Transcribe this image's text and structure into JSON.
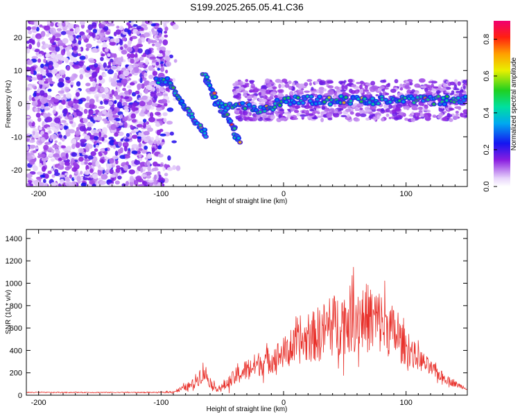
{
  "title": "S199.2025.265.05.41.C36",
  "chart_data": [
    {
      "type": "heatmap",
      "xlabel": "Height of straight line (km)",
      "ylabel": "Frequency (Hz)",
      "xlim": [
        -210,
        150
      ],
      "ylim": [
        -25,
        25
      ],
      "xticks": [
        -200,
        -100,
        0,
        100
      ],
      "yticks": [
        -20,
        -10,
        0,
        10,
        20
      ],
      "colorbar": {
        "label": "Normalized spectral amplitude",
        "range": [
          0.0,
          0.9
        ],
        "ticks": [
          0.0,
          0.2,
          0.4,
          0.6,
          0.8
        ]
      },
      "signal_track": [
        {
          "x": -105,
          "y": 7
        },
        {
          "x": -95,
          "y": 7
        },
        {
          "x": -88,
          "y": 3
        },
        {
          "x": -80,
          "y": -1
        },
        {
          "x": -72,
          "y": -5
        },
        {
          "x": -62,
          "y": -10
        },
        {
          "x": -65,
          "y": 9
        },
        {
          "x": -58,
          "y": 3
        },
        {
          "x": -50,
          "y": -2
        },
        {
          "x": -42,
          "y": -6
        },
        {
          "x": -36,
          "y": -12
        },
        {
          "x": -55,
          "y": 0
        },
        {
          "x": -45,
          "y": -1
        },
        {
          "x": -30,
          "y": -1
        },
        {
          "x": -15,
          "y": -2
        },
        {
          "x": 0,
          "y": 1
        },
        {
          "x": 50,
          "y": 1
        },
        {
          "x": 100,
          "y": 1
        },
        {
          "x": 150,
          "y": 1
        }
      ],
      "noise_region": {
        "x_range": [
          -210,
          -95
        ],
        "y_range": [
          -25,
          25
        ]
      }
    },
    {
      "type": "line",
      "xlabel": "Height of straight line (km)",
      "ylabel": "SNR (10 * v/v)",
      "xlim": [
        -210,
        150
      ],
      "ylim": [
        0,
        1480
      ],
      "xticks": [
        -200,
        -100,
        0,
        100
      ],
      "yticks": [
        0,
        200,
        400,
        600,
        800,
        1000,
        1200,
        1400
      ],
      "color": "#e8302a",
      "envelope": {
        "x": [
          -210,
          -150,
          -100,
          -90,
          -85,
          -75,
          -70,
          -65,
          -60,
          -55,
          -50,
          -45,
          -40,
          -30,
          -20,
          -10,
          0,
          10,
          20,
          30,
          40,
          50,
          60,
          70,
          80,
          90,
          100,
          110,
          120,
          130,
          140,
          150
        ],
        "center": [
          25,
          25,
          25,
          30,
          50,
          90,
          150,
          220,
          110,
          60,
          70,
          110,
          160,
          230,
          280,
          320,
          380,
          440,
          500,
          560,
          620,
          660,
          700,
          690,
          650,
          560,
          420,
          330,
          240,
          160,
          100,
          60
        ],
        "spread": [
          6,
          6,
          6,
          15,
          30,
          60,
          100,
          150,
          60,
          40,
          50,
          80,
          110,
          140,
          160,
          180,
          200,
          240,
          300,
          360,
          400,
          420,
          450,
          450,
          420,
          330,
          220,
          150,
          100,
          70,
          40,
          20
        ]
      }
    }
  ]
}
